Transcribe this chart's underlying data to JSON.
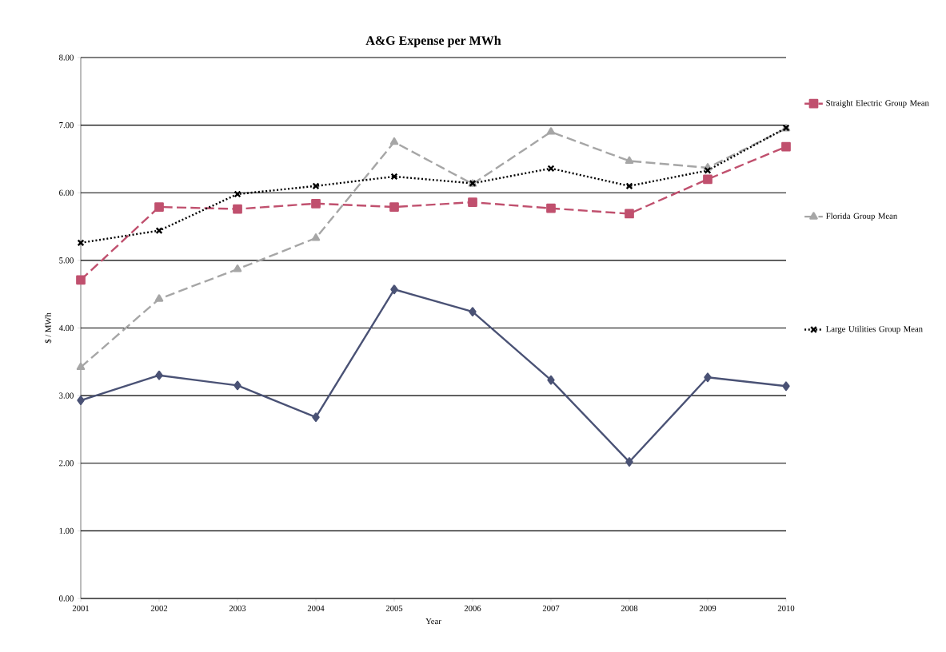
{
  "chart_data": {
    "type": "line",
    "title": "A&G Expense per MWh",
    "xlabel": "Year",
    "ylabel": "$ / MWh",
    "x": [
      2001,
      2002,
      2003,
      2004,
      2005,
      2006,
      2007,
      2008,
      2009,
      2010
    ],
    "series": [
      {
        "color": "#4a5275",
        "marker": "diamond",
        "line_style": "solid",
        "values": [
          2.93,
          3.3,
          3.15,
          2.68,
          4.57,
          4.24,
          3.23,
          2.02,
          3.27,
          3.14
        ]
      },
      {
        "name": "Straight Electric Group Mean",
        "color": "#c0506e",
        "marker": "square",
        "line_style": "dashed",
        "values": [
          4.71,
          5.79,
          5.76,
          5.84,
          5.79,
          5.86,
          5.77,
          5.69,
          6.2,
          6.68
        ]
      },
      {
        "name": "Florida Group Mean",
        "color": "#a6a6a6",
        "marker": "triangle",
        "line_style": "dashed",
        "values": [
          3.42,
          4.43,
          4.87,
          5.33,
          6.75,
          6.13,
          6.9,
          6.47,
          6.37,
          6.95
        ]
      },
      {
        "name": "Large Utilities Group Mean",
        "color": "#000000",
        "marker": "cross",
        "line_style": "dotted",
        "values": [
          5.26,
          5.44,
          5.98,
          6.1,
          6.24,
          6.14,
          6.36,
          6.1,
          6.33,
          6.96
        ]
      }
    ],
    "xlim": [
      2001,
      2010
    ],
    "xticks": [
      2001,
      2002,
      2003,
      2004,
      2005,
      2006,
      2007,
      2008,
      2009,
      2010
    ],
    "ylim": [
      0,
      8
    ],
    "yticks": [
      {
        "value": 0,
        "label": "0.00"
      },
      {
        "value": 1,
        "label": "1.00"
      },
      {
        "value": 2,
        "label": "2.00"
      },
      {
        "value": 3,
        "label": "3.00"
      },
      {
        "value": 4,
        "label": "4.00"
      },
      {
        "value": 5,
        "label": "5.00"
      },
      {
        "value": 6,
        "label": "6.00"
      },
      {
        "value": 7,
        "label": "7.00"
      },
      {
        "value": 8,
        "label": "8.00"
      }
    ],
    "grid": "y",
    "legend": "right"
  }
}
